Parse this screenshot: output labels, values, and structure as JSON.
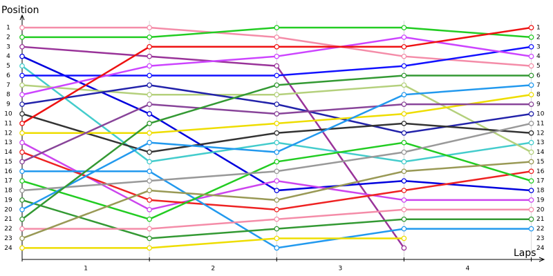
{
  "chart_data": {
    "type": "line",
    "y_label": "Position",
    "x_label": "Laps",
    "x": [
      0,
      1,
      2,
      3,
      4
    ],
    "xlim": [
      0,
      4.1
    ],
    "xticks": [
      {
        "value": 0.5,
        "label": "1"
      },
      {
        "value": 1.5,
        "label": "2"
      },
      {
        "value": 2.5,
        "label": "3"
      },
      {
        "value": 3.5,
        "label": "4"
      }
    ],
    "ylim": [
      -0.3,
      25.2
    ],
    "y_inverted": true,
    "yticks": [
      1,
      2,
      3,
      4,
      5,
      6,
      7,
      8,
      9,
      10,
      11,
      12,
      13,
      14,
      15,
      16,
      17,
      18,
      19,
      20,
      21,
      22,
      23,
      24
    ],
    "grid": "vertical",
    "series": [
      {
        "color": "#f48ca8",
        "values": [
          1,
          1,
          2,
          4,
          5
        ]
      },
      {
        "color": "#22cc22",
        "values": [
          2,
          2,
          1,
          1,
          2
        ]
      },
      {
        "color": "#993399",
        "values": [
          3,
          4,
          5,
          24,
          null
        ]
      },
      {
        "color": "#0000dd",
        "values": [
          4,
          10,
          18,
          17,
          18
        ]
      },
      {
        "color": "#44cccc",
        "values": [
          5,
          15,
          13,
          15,
          13
        ]
      },
      {
        "color": "#1111ff",
        "values": [
          6,
          6,
          6,
          5,
          3
        ]
      },
      {
        "color": "#b4d07c",
        "values": [
          7,
          8,
          8,
          7,
          14
        ]
      },
      {
        "color": "#cc44ff",
        "values": [
          8,
          5,
          4,
          2,
          4
        ]
      },
      {
        "color": "#2222aa",
        "values": [
          9,
          7,
          9,
          12,
          10
        ]
      },
      {
        "color": "#333333",
        "values": [
          10,
          14,
          12,
          11,
          12
        ]
      },
      {
        "color": "#ee1111",
        "values": [
          11,
          3,
          3,
          3,
          1
        ]
      },
      {
        "color": "#eedd00",
        "values": [
          12,
          12,
          11,
          10,
          8
        ]
      },
      {
        "color": "#cc44ee",
        "values": [
          13,
          20,
          17,
          19,
          19
        ]
      },
      {
        "color": "#ee2222",
        "values": [
          14,
          19,
          20,
          18,
          16
        ]
      },
      {
        "color": "#884499",
        "values": [
          15,
          9,
          10,
          9,
          9
        ]
      },
      {
        "color": "#2299ee",
        "values": [
          16,
          16,
          24,
          22,
          22
        ]
      },
      {
        "color": "#22cc22",
        "values": [
          17,
          21,
          15,
          13,
          17
        ]
      },
      {
        "color": "#999999",
        "values": [
          18,
          17,
          16,
          14,
          11
        ]
      },
      {
        "color": "#339933",
        "values": [
          19,
          23,
          22,
          21,
          21
        ]
      },
      {
        "color": "#2299ee",
        "values": [
          20,
          13,
          14,
          8,
          7
        ]
      },
      {
        "color": "#339933",
        "values": [
          21,
          11,
          7,
          6,
          6
        ]
      },
      {
        "color": "#f48ca8",
        "values": [
          22,
          22,
          21,
          20,
          20
        ]
      },
      {
        "color": "#999955",
        "values": [
          23,
          18,
          19,
          16,
          15
        ]
      },
      {
        "color": "#eedd00",
        "values": [
          24,
          24,
          23,
          23,
          null
        ]
      }
    ]
  }
}
